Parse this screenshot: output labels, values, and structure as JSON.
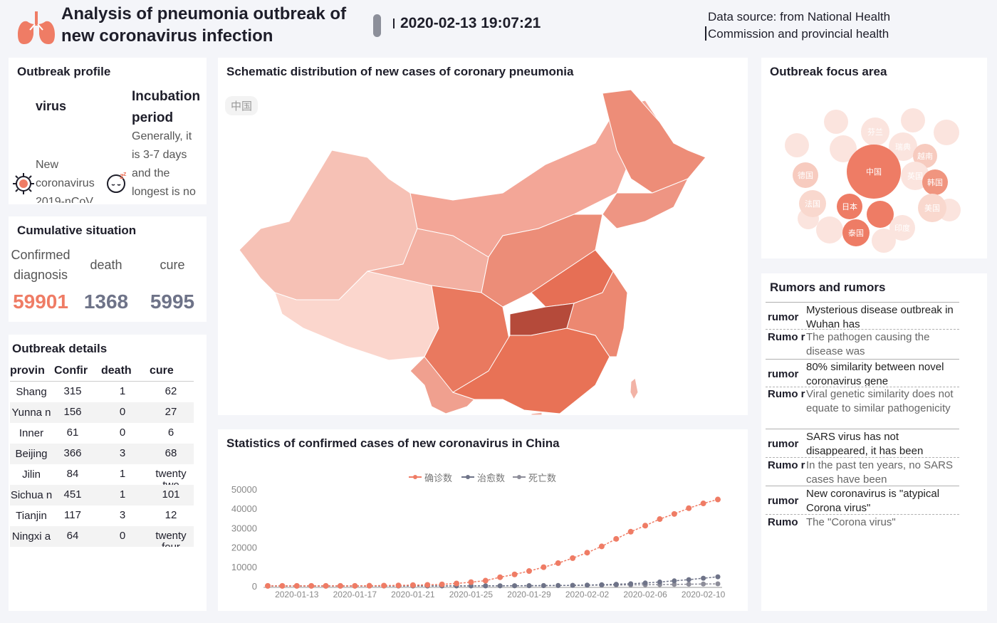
{
  "header": {
    "title": "Analysis of pneumonia outbreak of new coronavirus infection",
    "datetime": "2020-02-13 19:07:21",
    "source": "Data source: from National Health Commission and provincial health"
  },
  "profile": {
    "title": "Outbreak profile",
    "virus_label": "virus",
    "virus_desc": "New coronavirus 2019-nCoV",
    "incubation_label": "Incubation period",
    "incubation_desc": "Generally, it is 3-7 days and the longest is no"
  },
  "cumulative": {
    "title": "Cumulative situation",
    "confirmed_label": "Confirmed diagnosis",
    "death_label": "death",
    "cure_label": "cure",
    "confirmed": "59901",
    "death": "1368",
    "cure": "5995"
  },
  "details": {
    "title": "Outbreak details",
    "headers": [
      "provin",
      "Confir",
      "death",
      "cure"
    ],
    "rows": [
      [
        "Shang hai",
        "315",
        "1",
        "62"
      ],
      [
        "Yunna n",
        "156",
        "0",
        "27"
      ],
      [
        "Inner Mongo",
        "61",
        "0",
        "6"
      ],
      [
        "Beijing",
        "366",
        "3",
        "68"
      ],
      [
        "Jilin Provin",
        "84",
        "1",
        "twenty two"
      ],
      [
        "Sichua n",
        "451",
        "1",
        "101"
      ],
      [
        "Tianjin",
        "117",
        "3",
        "12"
      ],
      [
        "Ningxi a Hui",
        "64",
        "0",
        "twenty four"
      ]
    ]
  },
  "map": {
    "title": "Schematic distribution of new cases of coronary pneumonia",
    "tag": "中国"
  },
  "line": {
    "title": "Statistics of confirmed cases of new coronavirus in China",
    "legend": [
      "确诊数",
      "治愈数",
      "死亡数"
    ]
  },
  "focus": {
    "title": "Outbreak focus area",
    "bubbles": [
      "芬兰",
      "瑞典",
      "越南",
      "德国",
      "中国",
      "英国",
      "韩国",
      "法国",
      "日本",
      "美国",
      "泰国",
      "印度"
    ]
  },
  "rumors": {
    "title": "Rumors and rumors",
    "items": [
      {
        "label": "rumor",
        "text": "Mysterious disease outbreak in Wuhan has"
      },
      {
        "label": "Rumo r",
        "text": "The pathogen causing the disease was"
      },
      {
        "label": "rumor",
        "text": "80% similarity between novel coronavirus gene"
      },
      {
        "label": "Rumo r",
        "text": "Viral genetic similarity does not equate to similar pathogenicity"
      },
      {
        "label": "rumor",
        "text": "SARS virus has not disappeared, it has been"
      },
      {
        "label": "Rumo r",
        "text": "In the past ten years, no SARS cases have been"
      },
      {
        "label": "rumor",
        "text": "New coronavirus is \"atypical Corona virus\""
      },
      {
        "label": "Rumo",
        "text": "The \"Corona virus\""
      }
    ]
  },
  "colors": {
    "accent": "#ef7c65",
    "cure": "#6e7388",
    "death": "#8d8d99"
  },
  "chart_data": {
    "type": "line",
    "title": "Statistics of confirmed cases of new coronavirus in China",
    "x": [
      "2020-01-11",
      "2020-01-12",
      "2020-01-13",
      "2020-01-14",
      "2020-01-15",
      "2020-01-16",
      "2020-01-17",
      "2020-01-18",
      "2020-01-19",
      "2020-01-20",
      "2020-01-21",
      "2020-01-22",
      "2020-01-23",
      "2020-01-24",
      "2020-01-25",
      "2020-01-26",
      "2020-01-27",
      "2020-01-28",
      "2020-01-29",
      "2020-01-30",
      "2020-01-31",
      "2020-02-01",
      "2020-02-02",
      "2020-02-03",
      "2020-02-04",
      "2020-02-05",
      "2020-02-06",
      "2020-02-07",
      "2020-02-08",
      "2020-02-09",
      "2020-02-10",
      "2020-02-11"
    ],
    "x_tick_labels": [
      "2020-01-13",
      "2020-01-17",
      "2020-01-21",
      "2020-01-25",
      "2020-01-29",
      "2020-02-02",
      "2020-02-06",
      "2020-02-10"
    ],
    "series": [
      {
        "name": "确诊数",
        "values": [
          41,
          41,
          41,
          41,
          41,
          45,
          62,
          121,
          198,
          291,
          440,
          571,
          830,
          1287,
          1975,
          2744,
          4515,
          5974,
          7711,
          9692,
          11791,
          14380,
          17205,
          20438,
          24324,
          28018,
          31161,
          34546,
          37198,
          40171,
          42638,
          44653
        ]
      },
      {
        "name": "治愈数",
        "values": [
          0,
          0,
          0,
          0,
          0,
          0,
          0,
          0,
          0,
          0,
          0,
          0,
          34,
          38,
          49,
          51,
          60,
          103,
          124,
          171,
          243,
          328,
          475,
          632,
          892,
          1153,
          1540,
          2050,
          2649,
          3281,
          3996,
          4740
        ]
      },
      {
        "name": "死亡数",
        "values": [
          1,
          1,
          1,
          1,
          2,
          2,
          2,
          3,
          3,
          6,
          9,
          17,
          25,
          41,
          56,
          80,
          106,
          132,
          170,
          213,
          259,
          304,
          361,
          425,
          490,
          563,
          636,
          722,
          811,
          908,
          1016,
          1113
        ]
      }
    ],
    "yticks": [
      0,
      10000,
      20000,
      30000,
      40000,
      50000
    ],
    "ylim": [
      0,
      50000
    ],
    "legend_position": "top-center",
    "grid": false
  }
}
